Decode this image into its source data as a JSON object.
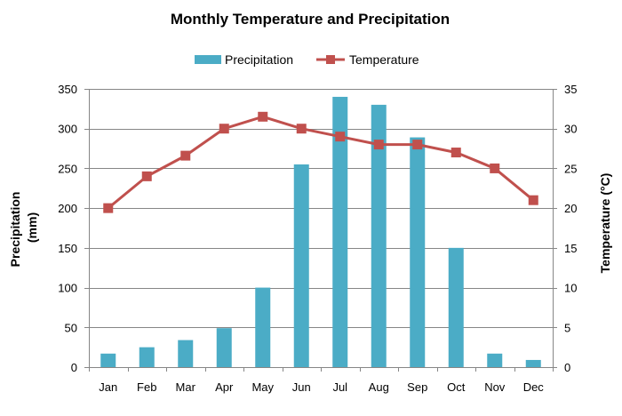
{
  "chart_data": {
    "type": "bar+line",
    "title": "Monthly Temperature and Precipitation",
    "categories": [
      "Jan",
      "Feb",
      "Mar",
      "Apr",
      "May",
      "Jun",
      "Jul",
      "Aug",
      "Sep",
      "Oct",
      "Nov",
      "Dec"
    ],
    "series": [
      {
        "name": "Precipitation",
        "type": "bar",
        "axis": "left",
        "color": "#4BACC6",
        "values": [
          17,
          25,
          34,
          49,
          100,
          255,
          340,
          330,
          289,
          150,
          17,
          9
        ]
      },
      {
        "name": "Temperature",
        "type": "line",
        "axis": "right",
        "color": "#C0504D",
        "values": [
          20,
          24,
          26.6,
          30,
          31.5,
          30,
          29,
          28,
          28,
          27,
          25,
          21
        ]
      }
    ],
    "y_left": {
      "label_line1": "Precipitation",
      "label_line2": "(mm)",
      "min": 0,
      "max": 350,
      "step": 50,
      "ticks": [
        "0",
        "50",
        "100",
        "150",
        "200",
        "250",
        "300",
        "350"
      ]
    },
    "y_right": {
      "label": "Temperature (°C)",
      "min": 0,
      "max": 35,
      "step": 5,
      "ticks": [
        "0",
        "5",
        "10",
        "15",
        "20",
        "25",
        "30",
        "35"
      ]
    },
    "grid": true,
    "legend_position": "top-center",
    "grid_color": "#868686",
    "axis_color": "#868686"
  }
}
